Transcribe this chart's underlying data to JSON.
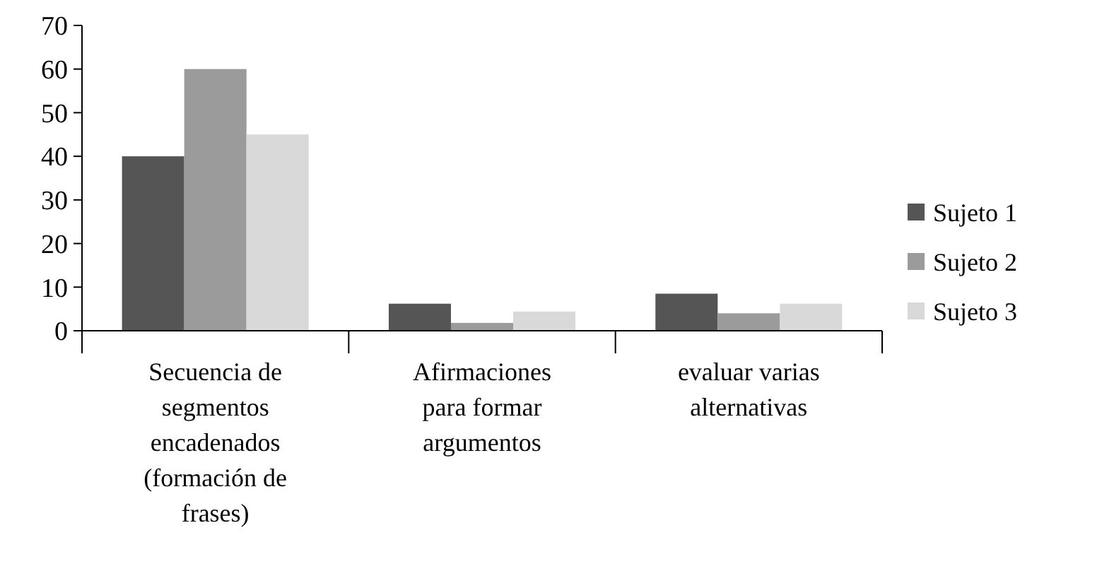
{
  "chart_data": {
    "type": "bar",
    "categories": [
      "Secuencia de segmentos encadenados (formación de frases)",
      "Afirmaciones para formar argumentos",
      "evaluar varias alternativas"
    ],
    "series": [
      {
        "name": "Sujeto 1",
        "color": "#555555",
        "values": [
          40,
          6.2,
          8.5
        ]
      },
      {
        "name": "Sujeto 2",
        "color": "#9b9b9b",
        "values": [
          60,
          1.8,
          4.0
        ]
      },
      {
        "name": "Sujeto 3",
        "color": "#d9d9d9",
        "values": [
          45,
          4.4,
          6.2
        ]
      }
    ],
    "ylim": [
      0,
      70
    ],
    "yticks": [
      0,
      10,
      20,
      30,
      40,
      50,
      60,
      70
    ],
    "grid": false,
    "legend": "right"
  }
}
